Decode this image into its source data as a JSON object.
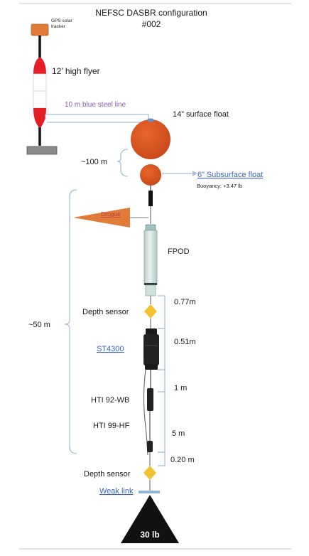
{
  "title": {
    "line1": "NEFSC DASBR configuration",
    "line2": "#002"
  },
  "labels": {
    "gps_tracker_line1": "GPS solar",
    "gps_tracker_line2": "tracker",
    "high_flyer": "12’ high flyer",
    "blue_steel_line": "10 m blue steel line",
    "surface_float": "14” surface float",
    "depth_100m": "~100 m",
    "subsurface_float": "6” Subsurface float",
    "buoyancy": "Buoyancy: +3.47 lb",
    "drogue": "Drogue",
    "fpod": "FPOD",
    "depth_sensor_top": "Depth sensor",
    "dist_077": "0.77m",
    "depth_50m": "~50 m",
    "dist_051": "0.51m",
    "st4300": "ST4300",
    "dist_1m": "1 m",
    "hti_92": "HTI 92-WB",
    "hti_99": "HTI 99-HF",
    "dist_5m": "5 m",
    "dist_020": "0.20 m",
    "depth_sensor_bottom": "Depth sensor",
    "weak_link": "Weak link",
    "anchor_weight": "30 lb"
  },
  "colors": {
    "float_orange": "#d9531e",
    "tracker_orange": "#e07b39",
    "flyer_red": "#e31e24",
    "sensor_yellow": "#f2c230",
    "fpod_body": "#d6e6e3",
    "brace_blue": "#a9c1d8",
    "link_blue": "#3a64c8",
    "label_purple": "#8a5cb8"
  }
}
